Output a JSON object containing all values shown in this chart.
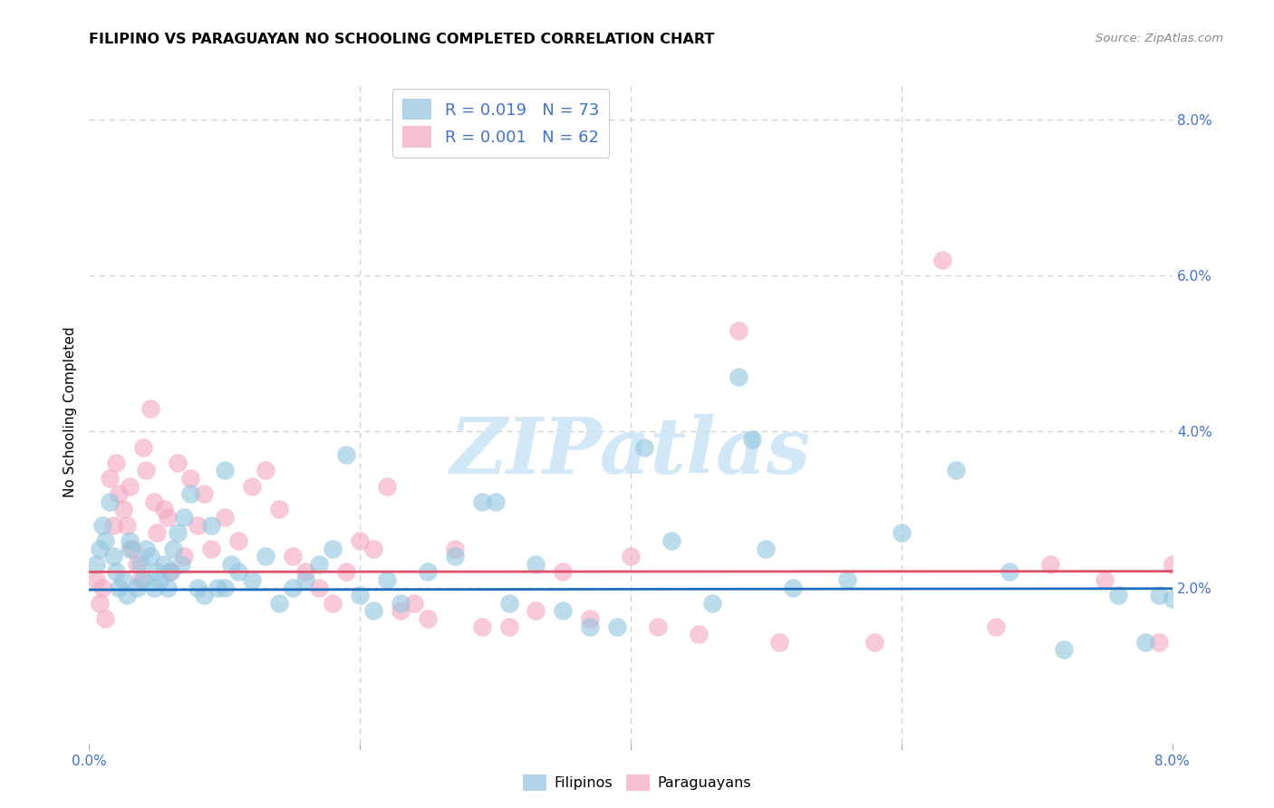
{
  "title": "FILIPINO VS PARAGUAYAN NO SCHOOLING COMPLETED CORRELATION CHART",
  "source": "Source: ZipAtlas.com",
  "ylabel": "No Schooling Completed",
  "xlim": [
    0.0,
    8.0
  ],
  "ylim": [
    0.0,
    8.5
  ],
  "blue_trend_y_intercept": 1.97,
  "blue_trend_slope": 0.002,
  "pink_trend_y_intercept": 2.2,
  "pink_trend_slope": 0.001,
  "blue_color": "#92c5de",
  "pink_color": "#f4a6c0",
  "blue_line_color": "#1f6dbf",
  "pink_line_color": "#e0506a",
  "watermark_text": "ZIPatlas",
  "filipinos_x": [
    0.05,
    0.08,
    0.1,
    0.12,
    0.15,
    0.18,
    0.2,
    0.22,
    0.25,
    0.28,
    0.3,
    0.35,
    0.38,
    0.4,
    0.42,
    0.45,
    0.48,
    0.5,
    0.52,
    0.55,
    0.58,
    0.6,
    0.62,
    0.65,
    0.68,
    0.7,
    0.75,
    0.8,
    0.85,
    0.9,
    0.95,
    1.0,
    1.05,
    1.1,
    1.2,
    1.3,
    1.4,
    1.5,
    1.6,
    1.7,
    1.8,
    1.9,
    2.0,
    2.1,
    2.2,
    2.3,
    2.5,
    2.7,
    2.9,
    3.1,
    3.3,
    3.5,
    3.7,
    3.9,
    4.1,
    4.3,
    4.6,
    4.9,
    5.2,
    5.6,
    6.0,
    6.4,
    6.8,
    7.2,
    7.6,
    7.8,
    7.9,
    8.0,
    4.8,
    5.0,
    3.0,
    1.0,
    0.3
  ],
  "filipinos_y": [
    2.3,
    2.5,
    2.8,
    2.6,
    3.1,
    2.4,
    2.2,
    2.0,
    2.1,
    1.9,
    2.6,
    2.0,
    2.3,
    2.1,
    2.5,
    2.4,
    2.0,
    2.2,
    2.1,
    2.3,
    2.0,
    2.2,
    2.5,
    2.7,
    2.3,
    2.9,
    3.2,
    2.0,
    1.9,
    2.8,
    2.0,
    3.5,
    2.3,
    2.2,
    2.1,
    2.4,
    1.8,
    2.0,
    2.1,
    2.3,
    2.5,
    3.7,
    1.9,
    1.7,
    2.1,
    1.8,
    2.2,
    2.4,
    3.1,
    1.8,
    2.3,
    1.7,
    1.5,
    1.5,
    3.8,
    2.6,
    1.8,
    3.9,
    2.0,
    2.1,
    2.7,
    3.5,
    2.2,
    1.2,
    1.9,
    1.3,
    1.9,
    1.85,
    4.7,
    2.5,
    3.1,
    2.0,
    2.5
  ],
  "paraguayans_x": [
    0.05,
    0.08,
    0.1,
    0.12,
    0.15,
    0.18,
    0.2,
    0.22,
    0.25,
    0.28,
    0.3,
    0.32,
    0.35,
    0.38,
    0.4,
    0.42,
    0.45,
    0.48,
    0.5,
    0.55,
    0.58,
    0.6,
    0.65,
    0.7,
    0.75,
    0.8,
    0.85,
    0.9,
    1.0,
    1.1,
    1.2,
    1.3,
    1.4,
    1.5,
    1.6,
    1.7,
    1.8,
    1.9,
    2.0,
    2.1,
    2.2,
    2.3,
    2.4,
    2.5,
    2.7,
    2.9,
    3.1,
    3.3,
    3.5,
    3.7,
    4.0,
    4.2,
    4.5,
    4.8,
    5.1,
    5.8,
    6.3,
    6.7,
    7.1,
    7.5,
    7.9,
    8.0
  ],
  "paraguayans_y": [
    2.1,
    1.8,
    2.0,
    1.6,
    3.4,
    2.8,
    3.6,
    3.2,
    3.0,
    2.8,
    3.3,
    2.5,
    2.3,
    2.1,
    3.8,
    3.5,
    4.3,
    3.1,
    2.7,
    3.0,
    2.9,
    2.2,
    3.6,
    2.4,
    3.4,
    2.8,
    3.2,
    2.5,
    2.9,
    2.6,
    3.3,
    3.5,
    3.0,
    2.4,
    2.2,
    2.0,
    1.8,
    2.2,
    2.6,
    2.5,
    3.3,
    1.7,
    1.8,
    1.6,
    2.5,
    1.5,
    1.5,
    1.7,
    2.2,
    1.6,
    2.4,
    1.5,
    1.4,
    5.3,
    1.3,
    1.3,
    6.2,
    1.5,
    2.3,
    2.1,
    1.3,
    2.3
  ]
}
